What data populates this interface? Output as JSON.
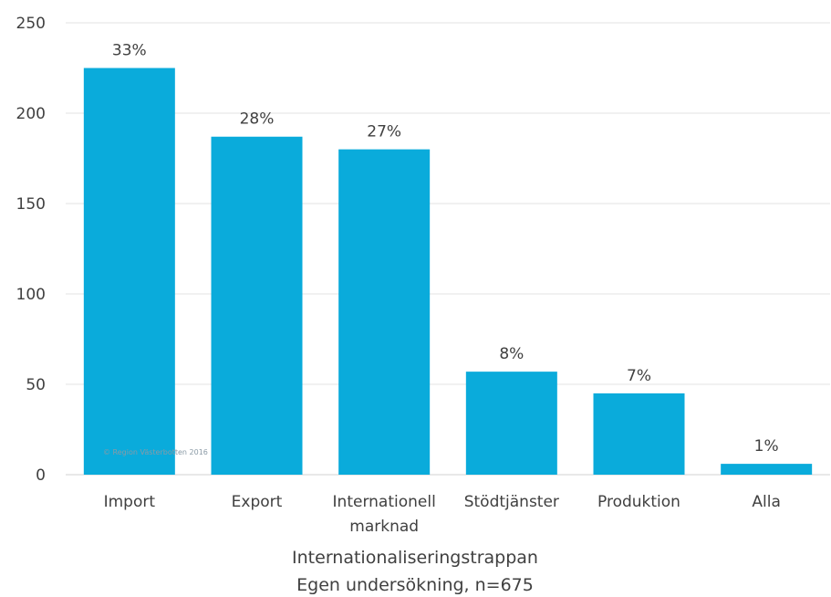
{
  "chart_data": {
    "type": "bar",
    "categories": [
      [
        "Import"
      ],
      [
        "Export"
      ],
      [
        "Internationell",
        "marknad"
      ],
      [
        "Stödtjänster"
      ],
      [
        "Produktion"
      ],
      [
        "Alla"
      ]
    ],
    "values": [
      225,
      187,
      180,
      57,
      45,
      6
    ],
    "data_labels": [
      "33%",
      "28%",
      "27%",
      "8%",
      "7%",
      "1%"
    ],
    "xlabel": [
      "Internationaliseringstrappan",
      "Egen undersökning, n=675"
    ],
    "ylabel": "",
    "ylim": [
      0,
      250
    ],
    "yticks": [
      0,
      50,
      100,
      150,
      200,
      250
    ],
    "grid": true,
    "color": "#0aabdb",
    "watermark": "© Region Västerbotten 2016"
  }
}
